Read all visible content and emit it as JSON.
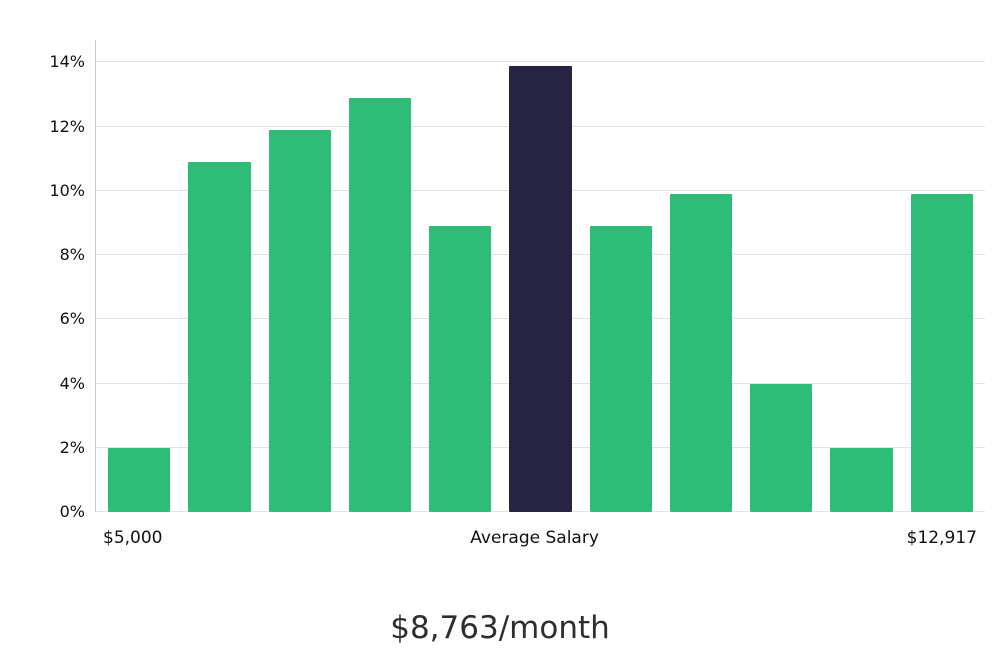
{
  "chart_data": {
    "type": "bar",
    "values": [
      2,
      10.9,
      11.9,
      12.9,
      8.9,
      13.9,
      8.9,
      9.9,
      4,
      2,
      9.9
    ],
    "highlight_index": 5,
    "highlight_label": "Average Salary",
    "bar_color": "#2ebd76",
    "highlight_color": "#262343",
    "gridline_color": "#e3e3e3",
    "axis_color": "#c9c9c9",
    "title": "$8,763/month",
    "xticks": {
      "left": "$5,000",
      "center": "Average Salary",
      "right": "$12,917"
    },
    "ylim": [
      0,
      14.7
    ],
    "ytick_values": [
      0,
      2,
      4,
      6,
      8,
      10,
      12,
      14
    ],
    "ytick_labels": [
      "0%",
      "2%",
      "4%",
      "6%",
      "8%",
      "10%",
      "12%",
      "14%"
    ],
    "grid": true,
    "legend": "none"
  }
}
